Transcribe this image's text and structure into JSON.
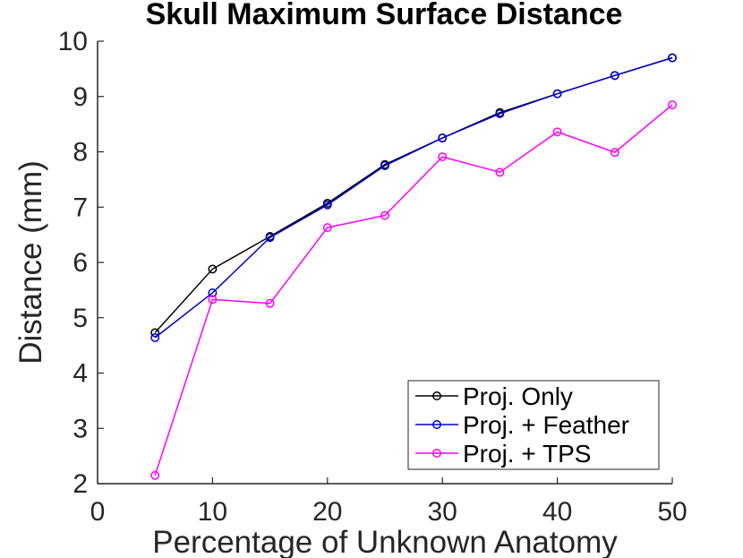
{
  "chart_data": {
    "type": "line",
    "title": "Skull Maximum Surface Distance",
    "xlabel": "Percentage of Unknown Anatomy",
    "ylabel": "Distance (mm)",
    "xlim": [
      0,
      50
    ],
    "ylim": [
      2,
      10
    ],
    "xticks": [
      0,
      10,
      20,
      30,
      40,
      50
    ],
    "yticks": [
      2,
      3,
      4,
      5,
      6,
      7,
      8,
      9,
      10
    ],
    "grid": false,
    "legend_position": "bottom-right",
    "x": [
      5,
      10,
      15,
      20,
      25,
      30,
      35,
      40,
      45,
      50
    ],
    "series": [
      {
        "name": "Proj. Only",
        "color": "#000000",
        "marker": "circle",
        "values": [
          4.73,
          5.88,
          6.47,
          7.07,
          7.77,
          8.25,
          8.71,
          9.05,
          9.38,
          9.7
        ]
      },
      {
        "name": "Proj. + Feather",
        "color": "#0000cc",
        "marker": "circle",
        "values": [
          4.64,
          5.45,
          6.45,
          7.04,
          7.75,
          8.25,
          8.69,
          9.05,
          9.38,
          9.7
        ]
      },
      {
        "name": "Proj. + TPS",
        "color": "#ff00ff",
        "marker": "circle",
        "values": [
          2.15,
          5.33,
          5.26,
          6.63,
          6.85,
          7.91,
          7.63,
          8.36,
          7.99,
          8.85
        ]
      }
    ]
  }
}
